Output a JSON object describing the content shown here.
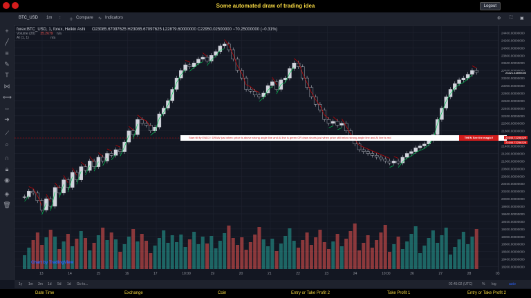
{
  "banner": {
    "title": "Some automated draw of trading idea",
    "logout": "Logout"
  },
  "toolbar": {
    "symbol": "BTC_USD",
    "interval": "1m",
    "compare": "Compare",
    "indicators": "Indicators"
  },
  "legend": {
    "main": "forex:BTC_USD, 1, forex, Heikin Ashi",
    "ohlc": "O23085.67097625  H23085.67097625  L22879.60000000  C22950.02500000  −70.25000000 (−0.31%)",
    "volume": "Volume (20)",
    "volume_value": "35.2679",
    "volume_na": "n/a",
    "ai": "AI (1, 1)",
    "ai_na": "n/a"
  },
  "annotation": {
    "text": "Start till fly END3 !  DRAW just when:  price is above strong angle line and AI line is green      OR      draw shorts just when price still below strong angle line and AI line is red",
    "cta": "THEN See the magic!!",
    "price_tag_1": "21646.72256329",
    "price_tag_2": "21646.72256329",
    "last_price": "23421.43895000"
  },
  "watermark": "Chart by TradingView",
  "bottom": {
    "ranges": [
      "1y",
      "1m",
      "3m",
      "1d",
      "5d",
      "1d",
      "Go to..."
    ],
    "clock": "02:45:02 (UTC)",
    "pct": "%",
    "log": "log",
    "auto": "auto"
  },
  "footer": [
    "Date Time",
    "Exchange",
    "Coin",
    "Entry or Take Profit 2",
    "Take Profit 1",
    "Entry or Take Profit 2"
  ],
  "colors": {
    "up": "#26a69a",
    "down": "#ef5350",
    "bg": "#131722",
    "ai_green": "#00c853",
    "ai_red": "#d50000",
    "annot": "#d21c1c"
  },
  "chart_data": {
    "type": "candlestick",
    "y_ticks": [
      "24400.00000000",
      "24200.00000000",
      "24000.00000000",
      "23800.00000000",
      "23600.00000000",
      "23400.00000000",
      "23200.00000000",
      "23000.00000000",
      "22800.00000000",
      "22600.00000000",
      "22400.00000000",
      "22200.00000000",
      "22000.00000000",
      "21800.00000000",
      "21600.00000000",
      "21400.00000000",
      "21200.00000000",
      "21000.00000000",
      "20800.00000000",
      "20600.00000000",
      "20400.00000000",
      "20200.00000000",
      "20000.00000000",
      "19800.00000000",
      "19600.00000000",
      "19400.00000000",
      "19200.00000000",
      "19000.00000000",
      "18800.00000000",
      "18600.00000000",
      "18400.00000000",
      "18200.00000000"
    ],
    "x_ticks": [
      "13",
      "14",
      "15",
      "16",
      "17",
      "10:00",
      "19",
      "20",
      "21",
      "22",
      "23",
      "24",
      "10:00",
      "26",
      "27",
      "28",
      "03"
    ],
    "ylim": [
      18100,
      24500
    ],
    "price_path": [
      20050,
      20200,
      20150,
      19950,
      19700,
      20000,
      19800,
      20300,
      20150,
      20500,
      20300,
      20700,
      20500,
      20850,
      20750,
      21000,
      20850,
      21100,
      21000,
      21200,
      21150,
      21300,
      21250,
      21500,
      21800,
      21700,
      22100,
      22000,
      21950,
      21800,
      21900,
      22250,
      22400,
      22600,
      22900,
      23200,
      23400,
      23550,
      23500,
      23600,
      23700,
      23750,
      23650,
      23800,
      23900,
      24050,
      24100,
      23950,
      23700,
      23400,
      23200,
      22900,
      22850,
      22750,
      22700,
      22800,
      23000,
      23100,
      22900,
      23150,
      23200,
      23450,
      23600,
      23500,
      23200,
      22950,
      22700,
      22500,
      22350,
      22100,
      22000,
      22050,
      21950,
      22000,
      21800,
      21600,
      21450,
      21300,
      21250,
      21200,
      21150,
      21100,
      21050,
      21000,
      20950,
      21000,
      20950,
      21100,
      21200,
      21250,
      21350,
      21400,
      21450,
      21550,
      21700,
      22100,
      22400,
      22700,
      22900,
      23050,
      23150,
      23200,
      23300,
      23400,
      23350
    ]
  }
}
